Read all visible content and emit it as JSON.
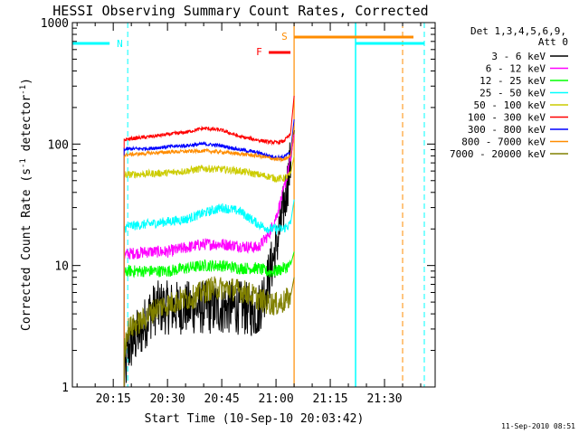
{
  "chart_data": {
    "type": "line",
    "title": "HESSI Observing Summary Count Rates, Corrected",
    "xlabel": "Start Time (10-Sep-10 20:03:42)",
    "ylabel_main": "Corrected Count Rate (s",
    "ylabel_sup1": "-1",
    "ylabel_mid": " detector",
    "ylabel_sup2": "-1",
    "ylabel_end": ")",
    "yscale": "log",
    "ylim": [
      1,
      1000
    ],
    "xlim": [
      "20:03:42",
      "21:44:00"
    ],
    "x_ticks": [
      "20:15",
      "20:30",
      "20:45",
      "21:00",
      "21:15",
      "21:30"
    ],
    "y_ticks": [
      "1",
      "10",
      "100",
      "1000"
    ],
    "timestamp": "11-Sep-2010 08:51",
    "legend": {
      "header": [
        "Det 1,3,4,5,6,9,",
        "Att 0"
      ],
      "entries": [
        {
          "label": "3 - 6 keV",
          "color": "#000000"
        },
        {
          "label": "6 - 12 keV",
          "color": "#ff00ff"
        },
        {
          "label": "12 - 25 keV",
          "color": "#00ff00"
        },
        {
          "label": "25 - 50 keV",
          "color": "#00ffff"
        },
        {
          "label": "50 - 100 keV",
          "color": "#cccc00"
        },
        {
          "label": "100 - 300 keV",
          "color": "#ff0000"
        },
        {
          "label": "300 - 800 keV",
          "color": "#0000ff"
        },
        {
          "label": "800 - 7000 keV",
          "color": "#ff8c00"
        },
        {
          "label": "7000 - 20000 keV",
          "color": "#808000"
        }
      ]
    },
    "annotations": {
      "night": {
        "label": "N",
        "color": "#00ffff",
        "intervals": [
          [
            "20:03:42",
            "20:14"
          ],
          [
            "21:22",
            "21:41"
          ]
        ]
      },
      "saa": {
        "label": "S",
        "color": "#ff8c00",
        "intervals": [
          [
            "21:05",
            "21:38"
          ]
        ]
      },
      "flare": {
        "label": "F",
        "color": "#ff0000",
        "intervals": [
          [
            "20:58",
            "21:04"
          ]
        ]
      },
      "night_bounds": [
        "20:19",
        "21:22",
        "21:39",
        "21:41"
      ],
      "saa_bounds": [
        "21:05",
        "21:35"
      ]
    },
    "series": [
      {
        "name": "3 - 6 keV",
        "color": "#000000",
        "noise": 0.45,
        "x": [
          "20:18",
          "20:19",
          "20:21",
          "20:23",
          "20:25",
          "20:27",
          "20:30",
          "20:35",
          "20:40",
          "20:45",
          "20:50",
          "20:55",
          "20:58",
          "21:00",
          "21:02",
          "21:03",
          "21:04",
          "21:05"
        ],
        "y": [
          1,
          2,
          2.5,
          3,
          4,
          4.5,
          4.5,
          4.5,
          4.5,
          4.5,
          4.5,
          4.2,
          8,
          14,
          28,
          45,
          70,
          130
        ]
      },
      {
        "name": "6 - 12 keV",
        "color": "#ff00ff",
        "noise": 0.1,
        "x": [
          "20:18",
          "20:19",
          "20:25",
          "20:30",
          "20:35",
          "20:40",
          "20:45",
          "20:50",
          "20:55",
          "20:58",
          "21:00",
          "21:02",
          "21:04",
          "21:05"
        ],
        "y": [
          12,
          12.5,
          13,
          13,
          14,
          15,
          15,
          14.5,
          14,
          18,
          25,
          40,
          75,
          120
        ]
      },
      {
        "name": "12 - 25 keV",
        "color": "#00ff00",
        "noise": 0.1,
        "x": [
          "20:18",
          "20:19",
          "20:25",
          "20:30",
          "20:35",
          "20:40",
          "20:45",
          "20:50",
          "20:55",
          "20:58",
          "21:00",
          "21:02",
          "21:04",
          "21:05"
        ],
        "y": [
          8.5,
          9,
          9,
          9,
          9.5,
          10,
          10,
          9.5,
          9.5,
          8.8,
          9,
          9.5,
          10,
          13
        ]
      },
      {
        "name": "25 - 50 keV",
        "color": "#00ffff",
        "noise": 0.08,
        "x": [
          "20:18",
          "20:19",
          "20:25",
          "20:30",
          "20:35",
          "20:40",
          "20:45",
          "20:50",
          "20:55",
          "20:58",
          "21:00",
          "21:02",
          "21:04",
          "21:05"
        ],
        "y": [
          20,
          21,
          22,
          23,
          24,
          27,
          30,
          28,
          22,
          20,
          20,
          20,
          22,
          35
        ]
      },
      {
        "name": "50 - 100 keV",
        "color": "#cccc00",
        "noise": 0.06,
        "x": [
          "20:18",
          "20:19",
          "20:25",
          "20:30",
          "20:35",
          "20:40",
          "20:45",
          "20:50",
          "20:55",
          "20:58",
          "21:00",
          "21:02",
          "21:04",
          "21:05"
        ],
        "y": [
          55,
          56,
          57,
          58,
          60,
          63,
          62,
          60,
          56,
          54,
          52,
          52,
          56,
          80
        ]
      },
      {
        "name": "100 - 300 keV",
        "color": "#ff0000",
        "noise": 0.03,
        "x": [
          "20:18",
          "20:19",
          "20:25",
          "20:30",
          "20:35",
          "20:40",
          "20:45",
          "20:50",
          "20:55",
          "20:58",
          "21:00",
          "21:02",
          "21:04",
          "21:05"
        ],
        "y": [
          108,
          110,
          115,
          120,
          125,
          135,
          130,
          115,
          108,
          104,
          103,
          105,
          120,
          250
        ]
      },
      {
        "name": "300 - 800 keV",
        "color": "#0000ff",
        "noise": 0.03,
        "x": [
          "20:18",
          "20:19",
          "20:25",
          "20:30",
          "20:35",
          "20:40",
          "20:45",
          "20:50",
          "20:55",
          "20:58",
          "21:00",
          "21:02",
          "21:04",
          "21:05"
        ],
        "y": [
          90,
          91,
          92,
          95,
          97,
          100,
          97,
          90,
          85,
          80,
          78,
          78,
          85,
          160
        ]
      },
      {
        "name": "800 - 7000 keV",
        "color": "#ff8c00",
        "noise": 0.03,
        "x": [
          "20:18",
          "20:19",
          "20:25",
          "20:30",
          "20:35",
          "20:40",
          "20:45",
          "20:50",
          "20:55",
          "20:58",
          "21:00",
          "21:02",
          "21:04",
          "21:05"
        ],
        "y": [
          80,
          82,
          84,
          86,
          87,
          88,
          86,
          83,
          80,
          77,
          75,
          74,
          80,
          140
        ]
      },
      {
        "name": "7000 - 20000 keV",
        "color": "#808000",
        "noise": 0.2,
        "x": [
          "20:18",
          "20:19",
          "20:23",
          "20:27",
          "20:32",
          "20:37",
          "20:42",
          "20:47",
          "20:52",
          "20:57",
          "21:00",
          "21:02",
          "21:04",
          "21:05"
        ],
        "y": [
          2,
          3,
          3.5,
          4.5,
          5,
          5.5,
          6.5,
          6.5,
          6,
          5,
          4.8,
          5,
          5.5,
          8
        ]
      }
    ]
  }
}
